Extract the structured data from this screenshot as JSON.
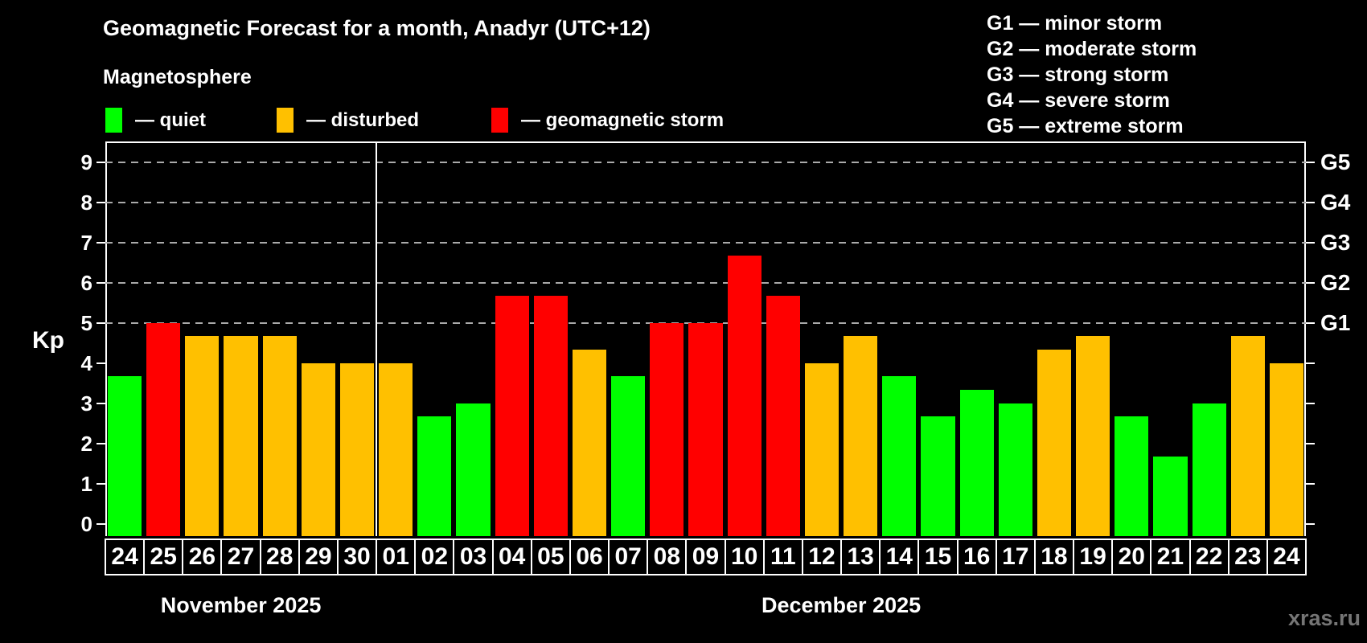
{
  "header": {
    "title": "Geomagnetic Forecast for a month, Anadyr (UTC+12)",
    "subtitle": "Magnetosphere"
  },
  "legend": {
    "quiet": "— quiet",
    "disturbed": "— disturbed",
    "storm": "— geomagnetic storm"
  },
  "g_legend": [
    "G1 — minor storm",
    "G2 — moderate storm",
    "G3 — strong storm",
    "G4 — severe storm",
    "G5 — extreme storm"
  ],
  "watermark": "xras.ru",
  "colors": {
    "quiet": "#00ff00",
    "disturbed": "#ffc000",
    "storm": "#ff0000",
    "frame": "#ffffff",
    "gridline": "#aaaaaa",
    "watermark": "#757575"
  },
  "chart_data": {
    "type": "bar",
    "ylabel": "Kp",
    "ylim": [
      0,
      9
    ],
    "y_ticks": [
      0,
      1,
      2,
      3,
      4,
      5,
      6,
      7,
      8,
      9
    ],
    "gridlines_at": [
      5,
      6,
      7,
      8,
      9
    ],
    "right_axis_labels": {
      "5": "G1",
      "6": "G2",
      "7": "G3",
      "8": "G4",
      "9": "G5"
    },
    "legend_position": "top",
    "grid": "dashed horizontal at storm levels only",
    "months": [
      {
        "label": "November 2025",
        "days": 7
      },
      {
        "label": "December 2025",
        "days": 24
      }
    ],
    "bars": [
      {
        "day": "24",
        "kp": 3.67,
        "status": "quiet"
      },
      {
        "day": "25",
        "kp": 5.0,
        "status": "storm"
      },
      {
        "day": "26",
        "kp": 4.67,
        "status": "disturbed"
      },
      {
        "day": "27",
        "kp": 4.67,
        "status": "disturbed"
      },
      {
        "day": "28",
        "kp": 4.67,
        "status": "disturbed"
      },
      {
        "day": "29",
        "kp": 4.0,
        "status": "disturbed"
      },
      {
        "day": "30",
        "kp": 4.0,
        "status": "disturbed"
      },
      {
        "day": "01",
        "kp": 4.0,
        "status": "disturbed"
      },
      {
        "day": "02",
        "kp": 2.67,
        "status": "quiet"
      },
      {
        "day": "03",
        "kp": 3.0,
        "status": "quiet"
      },
      {
        "day": "04",
        "kp": 5.67,
        "status": "storm"
      },
      {
        "day": "05",
        "kp": 5.67,
        "status": "storm"
      },
      {
        "day": "06",
        "kp": 4.33,
        "status": "disturbed"
      },
      {
        "day": "07",
        "kp": 3.67,
        "status": "quiet"
      },
      {
        "day": "08",
        "kp": 5.0,
        "status": "storm"
      },
      {
        "day": "09",
        "kp": 5.0,
        "status": "storm"
      },
      {
        "day": "10",
        "kp": 6.67,
        "status": "storm"
      },
      {
        "day": "11",
        "kp": 5.67,
        "status": "storm"
      },
      {
        "day": "12",
        "kp": 4.0,
        "status": "disturbed"
      },
      {
        "day": "13",
        "kp": 4.67,
        "status": "disturbed"
      },
      {
        "day": "14",
        "kp": 3.67,
        "status": "quiet"
      },
      {
        "day": "15",
        "kp": 2.67,
        "status": "quiet"
      },
      {
        "day": "16",
        "kp": 3.33,
        "status": "quiet"
      },
      {
        "day": "17",
        "kp": 3.0,
        "status": "quiet"
      },
      {
        "day": "18",
        "kp": 4.33,
        "status": "disturbed"
      },
      {
        "day": "19",
        "kp": 4.67,
        "status": "disturbed"
      },
      {
        "day": "20",
        "kp": 2.67,
        "status": "quiet"
      },
      {
        "day": "21",
        "kp": 1.67,
        "status": "quiet"
      },
      {
        "day": "22",
        "kp": 3.0,
        "status": "quiet"
      },
      {
        "day": "23",
        "kp": 4.67,
        "status": "disturbed"
      },
      {
        "day": "24",
        "kp": 4.0,
        "status": "disturbed"
      }
    ]
  }
}
